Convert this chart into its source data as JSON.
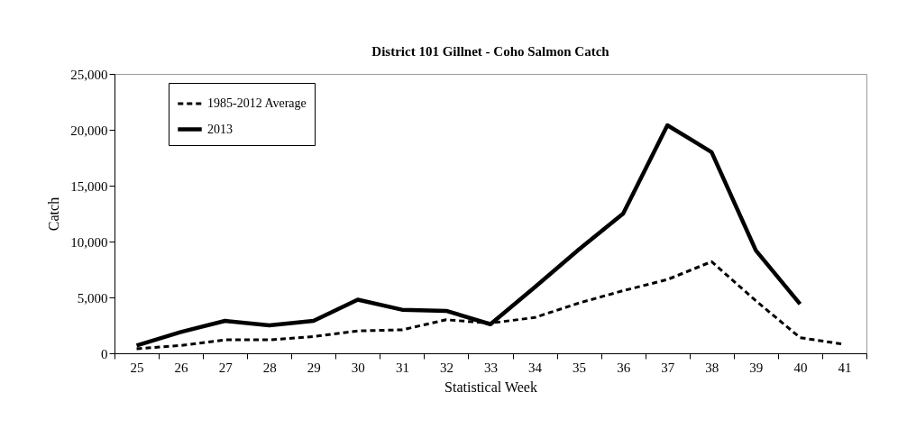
{
  "chart_data": {
    "type": "line",
    "title": "District 101 Gillnet  - Coho Salmon Catch",
    "xlabel": "Statistical Week",
    "ylabel": "Catch",
    "categories": [
      "25",
      "26",
      "27",
      "28",
      "29",
      "30",
      "31",
      "32",
      "33",
      "34",
      "35",
      "36",
      "37",
      "38",
      "39",
      "40",
      "41"
    ],
    "series": [
      {
        "name": "1985-2012 Average",
        "color": "#000000",
        "line_style": "dashed",
        "values": [
          400,
          700,
          1200,
          1200,
          1500,
          2000,
          2100,
          3000,
          2700,
          3200,
          4500,
          5600,
          6600,
          8200,
          4700,
          1400,
          800
        ]
      },
      {
        "name": "2013",
        "color": "#000000",
        "line_style": "solid",
        "values": [
          700,
          1900,
          2900,
          2500,
          2900,
          4800,
          3900,
          3800,
          2600,
          5900,
          9300,
          12500,
          20400,
          18000,
          9200,
          4400,
          null
        ]
      }
    ],
    "ylim": [
      0,
      25000
    ],
    "yticks": [
      0,
      {
        "value": 5000,
        "label": "5,000"
      },
      {
        "value": 10000,
        "label": "10,000"
      },
      {
        "value": 15000,
        "label": "15,000"
      },
      {
        "value": 20000,
        "label": "20,000"
      },
      {
        "value": 25000,
        "label": "25,000"
      }
    ],
    "grid": false,
    "legend": "top left",
    "marker": "none"
  }
}
